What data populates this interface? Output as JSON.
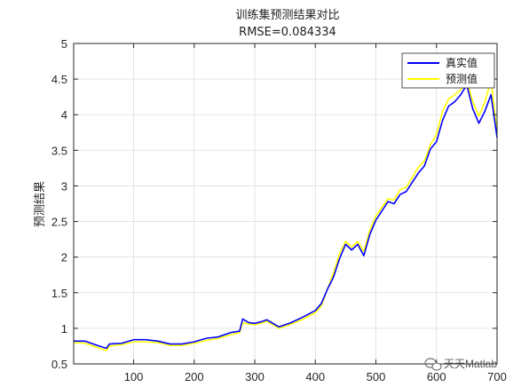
{
  "figure": {
    "title": "训练集预测结果对比",
    "subtitle": "RMSE=0.084334",
    "ylabel": "预测结果",
    "watermark": "天天Matlab",
    "watermark_icon": "wechat-icon"
  },
  "chart_data": {
    "type": "line",
    "title": "训练集预测结果对比",
    "subtitle": "RMSE=0.084334",
    "xlabel": "",
    "ylabel": "预测结果",
    "xlim": [
      1,
      700
    ],
    "ylim": [
      0.5,
      5
    ],
    "xticks": [
      100,
      200,
      300,
      400,
      500,
      600,
      700
    ],
    "yticks": [
      0.5,
      1,
      1.5,
      2,
      2.5,
      3,
      3.5,
      4,
      4.5,
      5
    ],
    "grid": true,
    "legend_position": "top-right",
    "x": [
      1,
      20,
      40,
      55,
      60,
      80,
      100,
      120,
      140,
      160,
      180,
      200,
      220,
      240,
      260,
      275,
      280,
      290,
      300,
      310,
      320,
      340,
      360,
      380,
      400,
      410,
      420,
      430,
      440,
      450,
      460,
      470,
      480,
      490,
      500,
      510,
      520,
      530,
      540,
      550,
      560,
      570,
      580,
      590,
      600,
      610,
      620,
      630,
      640,
      650,
      660,
      670,
      680,
      690,
      700
    ],
    "series": [
      {
        "name": "真实值",
        "color": "#0000ff",
        "values": [
          0.82,
          0.82,
          0.76,
          0.72,
          0.78,
          0.79,
          0.84,
          0.84,
          0.82,
          0.78,
          0.78,
          0.81,
          0.86,
          0.88,
          0.94,
          0.96,
          1.13,
          1.08,
          1.07,
          1.09,
          1.12,
          1.02,
          1.08,
          1.16,
          1.25,
          1.35,
          1.55,
          1.72,
          1.98,
          2.18,
          2.1,
          2.18,
          2.02,
          2.32,
          2.52,
          2.65,
          2.78,
          2.75,
          2.88,
          2.92,
          3.05,
          3.18,
          3.28,
          3.52,
          3.62,
          3.92,
          4.12,
          4.18,
          4.28,
          4.42,
          4.08,
          3.88,
          4.05,
          4.28,
          3.68
        ]
      },
      {
        "name": "预测值",
        "color": "#ffff00",
        "values": [
          0.8,
          0.79,
          0.73,
          0.69,
          0.75,
          0.77,
          0.81,
          0.81,
          0.8,
          0.76,
          0.76,
          0.79,
          0.83,
          0.86,
          0.91,
          0.94,
          1.08,
          1.06,
          1.05,
          1.07,
          1.1,
          1.0,
          1.06,
          1.13,
          1.22,
          1.32,
          1.55,
          1.78,
          2.05,
          2.22,
          2.14,
          2.22,
          2.08,
          2.38,
          2.58,
          2.7,
          2.82,
          2.8,
          2.95,
          2.98,
          3.12,
          3.26,
          3.35,
          3.58,
          3.72,
          4.05,
          4.22,
          4.28,
          4.35,
          4.48,
          4.18,
          3.98,
          4.18,
          4.48,
          3.75
        ]
      }
    ]
  }
}
